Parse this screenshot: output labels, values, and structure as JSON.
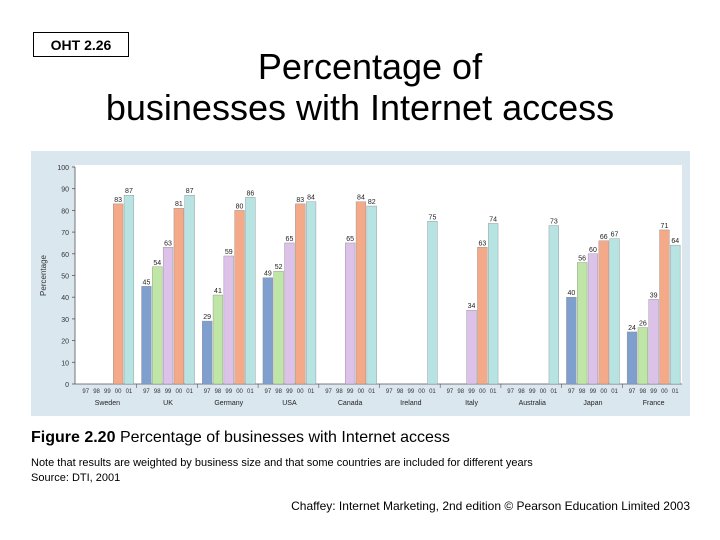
{
  "badge": "OHT 2.26",
  "title_line1": "Percentage of",
  "title_line2": "businesses with Internet access",
  "caption_label": "Figure 2.20",
  "caption_text": "Percentage of businesses with Internet access",
  "note": "Note that results are weighted by business size and that some countries are included for different years",
  "source": "Source: DTI, 2001",
  "footer": "Chaffey: Internet Marketing, 2nd edition © Pearson Education Limited 2003",
  "chart_data": {
    "type": "bar",
    "ylabel": "Percentage",
    "ylim": [
      0,
      100
    ],
    "yticks": [
      0,
      10,
      20,
      30,
      40,
      50,
      60,
      70,
      80,
      90,
      100
    ],
    "years": [
      "97",
      "98",
      "99",
      "00",
      "01"
    ],
    "categories": [
      "Sweden",
      "UK",
      "Germany",
      "USA",
      "Canada",
      "Ireland",
      "Italy",
      "Australia",
      "Japan",
      "France"
    ],
    "year_colors": [
      "#7f9fcf",
      "#bfe6a7",
      "#dcc1e8",
      "#f4a989",
      "#b7e3e3"
    ],
    "values": [
      [
        null,
        null,
        null,
        83,
        87
      ],
      [
        45,
        54,
        63,
        81,
        87
      ],
      [
        29,
        41,
        59,
        80,
        86
      ],
      [
        49,
        52,
        65,
        83,
        84
      ],
      [
        null,
        null,
        65,
        84,
        82
      ],
      [
        null,
        null,
        null,
        null,
        75
      ],
      [
        null,
        null,
        34,
        63,
        74
      ],
      [
        null,
        null,
        null,
        null,
        73
      ],
      [
        40,
        56,
        60,
        66,
        67
      ],
      [
        24,
        26,
        39,
        71,
        64
      ]
    ],
    "grid": false,
    "legend": "none"
  }
}
